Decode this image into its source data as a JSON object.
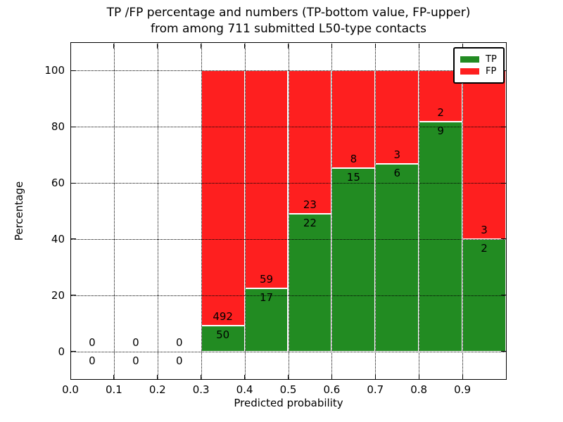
{
  "title": {
    "line1": "TP /FP percentage and numbers (TP-bottom value, FP-upper)",
    "line2": "from among 711 submitted L50-type contacts"
  },
  "axes": {
    "xlabel": "Predicted probability",
    "ylabel": "Percentage",
    "xtick_labels": [
      "0.0",
      "0.1",
      "0.2",
      "0.3",
      "0.4",
      "0.5",
      "0.6",
      "0.7",
      "0.8",
      "0.9"
    ],
    "ytick_labels": [
      "0",
      "20",
      "40",
      "60",
      "80",
      "100"
    ]
  },
  "legend": {
    "items": [
      {
        "label": "TP",
        "color": "#228B22"
      },
      {
        "label": "FP",
        "color": "#FE1F1F"
      }
    ]
  },
  "colors": {
    "tp": "#228B22",
    "fp": "#FE1F1F",
    "grid": "#000000",
    "background": "#ffffff"
  },
  "chart_data": {
    "type": "bar",
    "stacked": true,
    "normalized_to_percent": true,
    "title": "TP /FP percentage and numbers (TP-bottom value, FP-upper) from among 711 submitted L50-type contacts",
    "xlabel": "Predicted probability",
    "ylabel": "Percentage",
    "xlim": [
      0.0,
      1.0
    ],
    "ylim": [
      -10,
      110
    ],
    "xticks": [
      0.0,
      0.1,
      0.2,
      0.3,
      0.4,
      0.5,
      0.6,
      0.7,
      0.8,
      0.9
    ],
    "yticks": [
      0,
      20,
      40,
      60,
      80,
      100
    ],
    "grid": "dotted, drawn above bars",
    "legend_position": "upper right",
    "bar_width": 0.1,
    "bin_starts": [
      0.0,
      0.1,
      0.2,
      0.3,
      0.4,
      0.5,
      0.6,
      0.7,
      0.8,
      0.9
    ],
    "series": [
      {
        "name": "TP",
        "color": "#228B22",
        "counts": [
          0,
          0,
          0,
          50,
          17,
          22,
          15,
          6,
          9,
          2
        ]
      },
      {
        "name": "FP",
        "color": "#FE1F1F",
        "counts": [
          0,
          0,
          0,
          492,
          59,
          23,
          8,
          3,
          2,
          3
        ]
      }
    ],
    "annotation_rule": "FP count shown just above TP/FP boundary, TP count just below it; bins with no data show 0 above and 0 below the zero line",
    "total_contacts": 711
  }
}
